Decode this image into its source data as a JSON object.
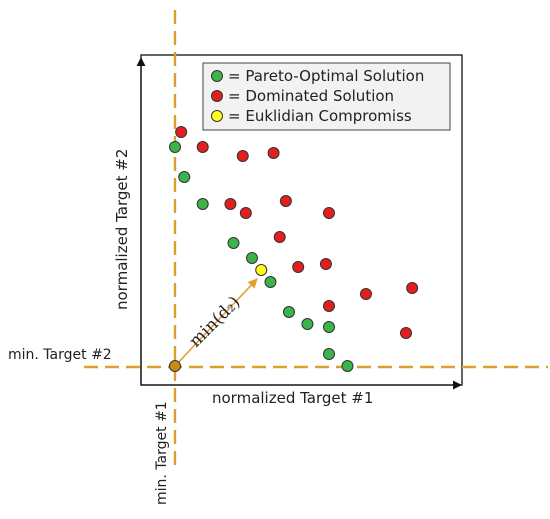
{
  "colors": {
    "pareto": "#3cb44a",
    "dominated": "#e31e1e",
    "compromise": "#ffff1a",
    "ideal": "#c78a1c",
    "guide": "#d9a02a",
    "arrow": "#e0a030",
    "frame": "#111111",
    "legend_bg": "#f2f2f2"
  },
  "legend": {
    "pareto": "= Pareto-Optimal Solution",
    "dominated": "= Dominated Solution",
    "compromise": "= Euklidian Compromiss"
  },
  "labels": {
    "x_axis": "normalized Target #1",
    "y_axis": "normalized  Target #2",
    "min_target2": "min. Target #2",
    "min_target1": "min. Target #1",
    "distance": "min(d₂)"
  },
  "chart_data": {
    "type": "scatter",
    "xlabel": "normalized Target #1",
    "ylabel": "normalized  Target #2",
    "xlim": [
      0,
      1
    ],
    "ylim": [
      0,
      1
    ],
    "ideal_point": [
      0,
      0
    ],
    "compromise_point": [
      0.28,
      0.32
    ],
    "series": [
      {
        "name": "= Pareto-Optimal Solution",
        "points": [
          [
            0.0,
            0.73
          ],
          [
            0.03,
            0.63
          ],
          [
            0.09,
            0.54
          ],
          [
            0.19,
            0.41
          ],
          [
            0.25,
            0.36
          ],
          [
            0.31,
            0.28
          ],
          [
            0.37,
            0.18
          ],
          [
            0.43,
            0.14
          ],
          [
            0.5,
            0.13
          ],
          [
            0.5,
            0.04
          ],
          [
            0.56,
            0.0
          ]
        ]
      },
      {
        "name": "= Dominated Solution",
        "points": [
          [
            0.02,
            0.78
          ],
          [
            0.09,
            0.73
          ],
          [
            0.22,
            0.7
          ],
          [
            0.32,
            0.71
          ],
          [
            0.18,
            0.54
          ],
          [
            0.23,
            0.51
          ],
          [
            0.36,
            0.55
          ],
          [
            0.5,
            0.51
          ],
          [
            0.34,
            0.43
          ],
          [
            0.4,
            0.33
          ],
          [
            0.49,
            0.34
          ],
          [
            0.5,
            0.2
          ],
          [
            0.62,
            0.24
          ],
          [
            0.75,
            0.11
          ],
          [
            0.77,
            0.26
          ]
        ]
      },
      {
        "name": "= Euklidian Compromiss",
        "points": [
          [
            0.28,
            0.32
          ]
        ]
      }
    ]
  }
}
